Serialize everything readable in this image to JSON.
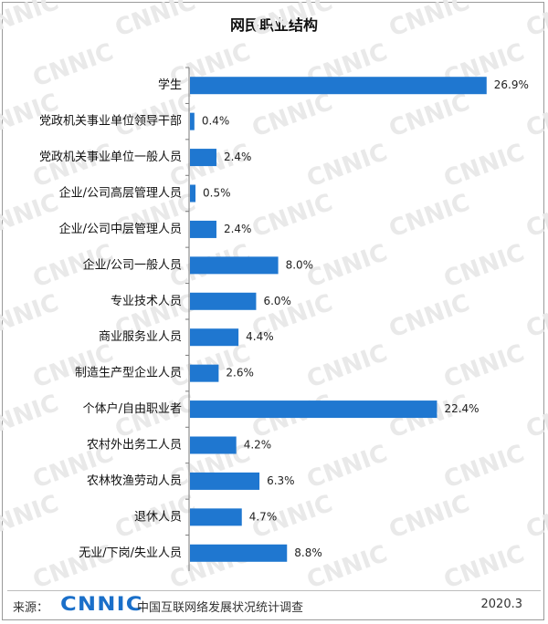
{
  "watermark_text": "CNNIC",
  "chart_data": {
    "type": "bar",
    "orientation": "horizontal",
    "title": "网民职业结构",
    "categories": [
      "学生",
      "党政机关事业单位领导干部",
      "党政机关事业单位一般人员",
      "企业/公司高层管理人员",
      "企业/公司中层管理人员",
      "企业/公司一般人员",
      "专业技术人员",
      "商业服务业人员",
      "制造生产型企业人员",
      "个体户/自由职业者",
      "农村外出务工人员",
      "农林牧渔劳动人员",
      "退休人员",
      "无业/下岗/失业人员"
    ],
    "values": [
      26.9,
      0.4,
      2.4,
      0.5,
      2.4,
      8.0,
      6.0,
      4.4,
      2.6,
      22.4,
      4.2,
      6.3,
      4.7,
      8.8
    ],
    "value_labels": [
      "26.9%",
      "0.4%",
      "2.4%",
      "0.5%",
      "2.4%",
      "8.0%",
      "6.0%",
      "4.4%",
      "2.6%",
      "22.4%",
      "4.2%",
      "6.3%",
      "4.7%",
      "8.8%"
    ],
    "xlim": [
      0,
      27
    ],
    "bar_color": "#1f77d0",
    "grid": false,
    "legend": "none"
  },
  "footer": {
    "source_label": "来源：",
    "logo_text": "CNNIC",
    "source_name": "中国互联网络发展状况统计调查",
    "date": "2020.3"
  }
}
